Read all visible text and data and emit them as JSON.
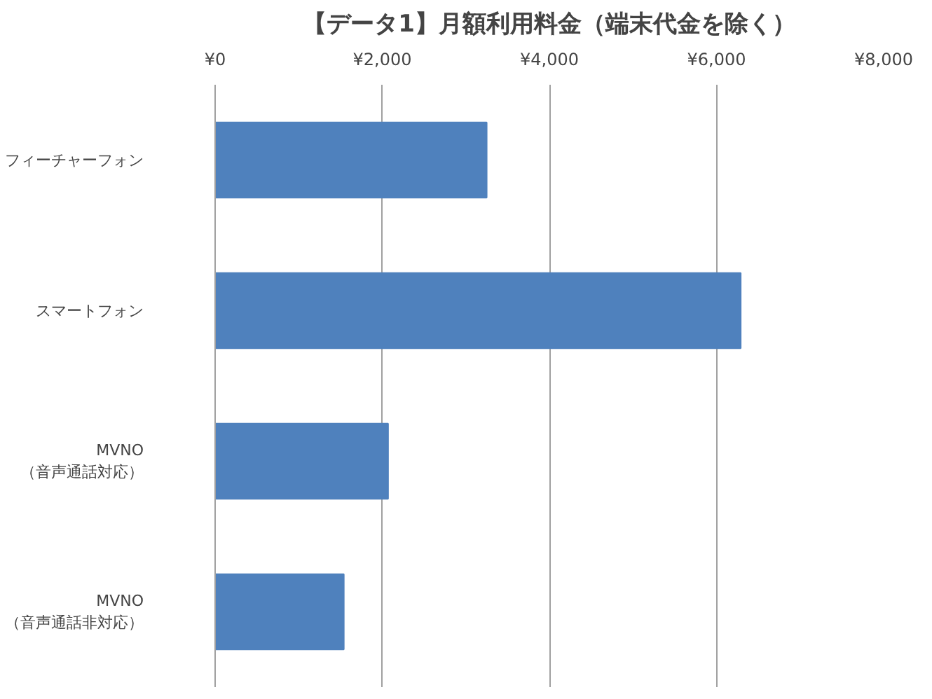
{
  "chart_data": {
    "type": "bar",
    "orientation": "horizontal",
    "title": "【データ1】月額利用料金（端末代金を除く）",
    "categories": [
      "フィーチャーフォン",
      "スマートフォン",
      "MVNO\n（音声通話対応）",
      "MVNO\n（音声通話非対応）"
    ],
    "values": [
      3250,
      6290,
      2070,
      1540
    ],
    "color": "#4f81bd",
    "xlim": [
      0,
      8000
    ],
    "xticks": [
      {
        "value": 0,
        "label": "¥0"
      },
      {
        "value": 2000,
        "label": "¥2,000"
      },
      {
        "value": 4000,
        "label": "¥4,000"
      },
      {
        "value": 6000,
        "label": "¥6,000"
      },
      {
        "value": 8000,
        "label": "¥8,000"
      }
    ],
    "grid": "x"
  }
}
